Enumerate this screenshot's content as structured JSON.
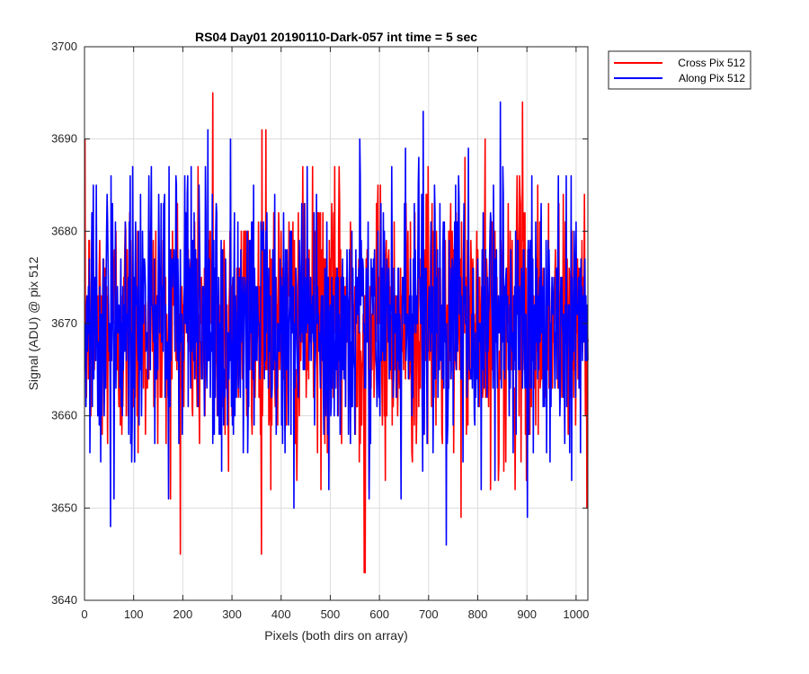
{
  "chart_data": {
    "type": "line",
    "title": "RS04 Day01 20190110-Dark-057 int time = 5 sec",
    "xlabel": "Pixels (both dirs on array)",
    "ylabel": "Signal (ADU) @ pix 512",
    "xlim": [
      0,
      1024
    ],
    "ylim": [
      3640,
      3700
    ],
    "xticks": [
      0,
      100,
      200,
      300,
      400,
      500,
      600,
      700,
      800,
      900,
      1000
    ],
    "yticks": [
      3640,
      3650,
      3660,
      3670,
      3680,
      3690,
      3700
    ],
    "grid": true,
    "legend_position": "outside-top-right",
    "series": [
      {
        "name": "Cross Pix 512",
        "color": "#ff0000",
        "mean": 3670,
        "min": 3643,
        "max": 3695,
        "notable_points": [
          [
            260,
            3695
          ],
          [
            890,
            3694
          ],
          [
            368,
            3691
          ],
          [
            568,
            3643
          ],
          [
            570,
            3643
          ],
          [
            360,
            3691
          ],
          [
            825,
            3652
          ]
        ]
      },
      {
        "name": "Along Pix 512",
        "color": "#0000ff",
        "mean": 3670,
        "min": 3646,
        "max": 3694,
        "notable_points": [
          [
            845,
            3694
          ],
          [
            735,
            3646
          ],
          [
            688,
            3693
          ],
          [
            250,
            3691
          ],
          [
            900,
            3649
          ],
          [
            52,
            3648
          ]
        ]
      }
    ]
  }
}
